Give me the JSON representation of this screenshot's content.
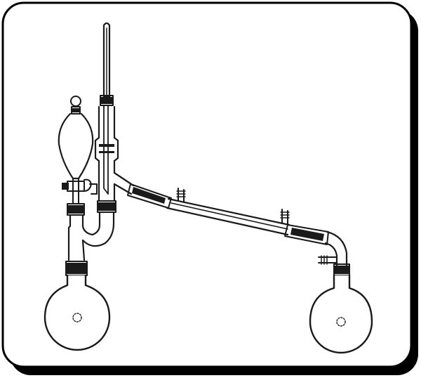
{
  "figure": {
    "type": "distillation-apparatus-line-drawing",
    "colors": {
      "ink": "#1a1a1a",
      "background": "#ffffff",
      "card_shadow": "#000000"
    },
    "components": [
      {
        "id": "thermometer",
        "icon": "thermometer-icon"
      },
      {
        "id": "addition-funnel",
        "icon": "separatory-funnel-icon"
      },
      {
        "id": "stopcock",
        "icon": "stopcock-icon"
      },
      {
        "id": "claisen-adapter",
        "icon": "claisen-adapter-icon"
      },
      {
        "id": "distillation-head",
        "icon": "distillation-head-icon"
      },
      {
        "id": "condenser",
        "icon": "condenser-icon"
      },
      {
        "id": "vacuum-adapter",
        "icon": "vacuum-adapter-icon"
      },
      {
        "id": "boiling-flask",
        "icon": "round-bottom-flask-icon"
      },
      {
        "id": "receiving-flask",
        "icon": "round-bottom-flask-icon"
      }
    ]
  }
}
